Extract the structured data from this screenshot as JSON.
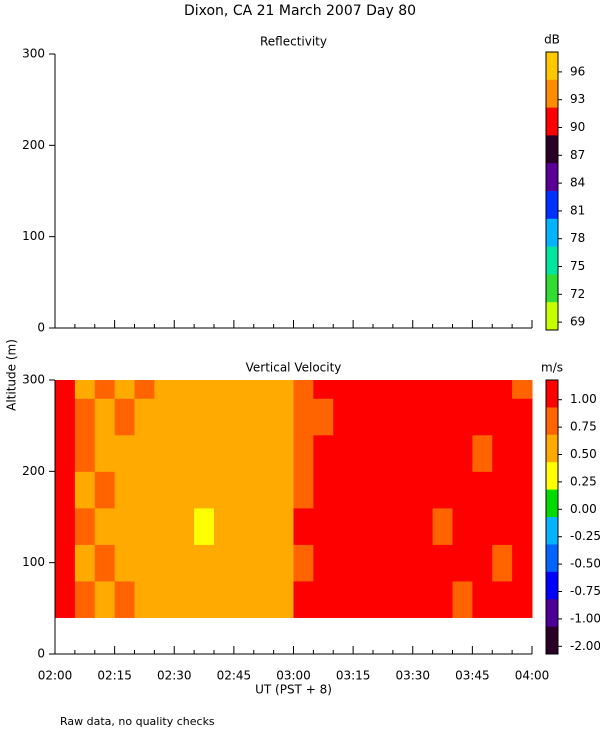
{
  "title": "Dixon, CA 21 March 2007  Day  80",
  "y_label": "Altitude (m)",
  "footnote": "Raw data, no quality checks",
  "chart_data": [
    {
      "type": "heatmap",
      "title": "Reflectivity",
      "ylim": [
        0,
        300
      ],
      "yticks": [
        0,
        100,
        200,
        300
      ],
      "y_edges": [],
      "values": [],
      "colorbar": {
        "unit": "dB",
        "ticks": [
          96,
          93,
          90,
          87,
          84,
          81,
          78,
          75,
          72,
          69
        ],
        "colors": [
          "#ffc800",
          "#ff8c00",
          "#ff0000",
          "#2a0028",
          "#5a0096",
          "#0032ff",
          "#00b4ff",
          "#00e6a0",
          "#32dc32",
          "#c8ff00"
        ]
      }
    },
    {
      "type": "heatmap",
      "title": "Vertical Velocity",
      "x_label": "UT  (PST + 8)",
      "categories": [
        "02:00",
        "02:15",
        "02:30",
        "02:45",
        "03:00",
        "03:15",
        "03:30",
        "03:45",
        "04:00"
      ],
      "ylim": [
        0,
        300
      ],
      "yticks": [
        0,
        100,
        200,
        300
      ],
      "y_edges": [
        40,
        80,
        120,
        160,
        200,
        240,
        280,
        300
      ],
      "values": [
        [
          1.1,
          0.8,
          0.7,
          0.8,
          0.6,
          0.7,
          0.6,
          0.5,
          0.6,
          0.7,
          0.6,
          0.5,
          1.0,
          1.1,
          1.1,
          1.0,
          1.1,
          1.1,
          1.0,
          1.1,
          0.9,
          1.1,
          1.1,
          1.0
        ],
        [
          1.1,
          0.7,
          0.8,
          0.7,
          0.7,
          0.6,
          0.5,
          0.6,
          0.5,
          0.6,
          0.7,
          0.6,
          0.9,
          1.1,
          1.0,
          1.1,
          1.1,
          1.0,
          1.1,
          1.1,
          1.1,
          1.0,
          0.9,
          1.1
        ],
        [
          1.1,
          0.8,
          0.7,
          0.6,
          0.6,
          0.5,
          0.6,
          0.4,
          0.5,
          0.6,
          0.6,
          0.7,
          1.0,
          1.1,
          1.1,
          1.1,
          1.0,
          1.1,
          1.1,
          0.9,
          1.1,
          1.1,
          1.0,
          1.1
        ],
        [
          1.1,
          0.7,
          0.8,
          0.7,
          0.6,
          0.6,
          0.5,
          0.5,
          0.6,
          0.5,
          0.7,
          0.6,
          0.9,
          1.0,
          1.1,
          1.1,
          1.1,
          1.1,
          1.0,
          1.1,
          1.1,
          1.1,
          1.1,
          1.0
        ],
        [
          1.1,
          0.8,
          0.6,
          0.7,
          0.7,
          0.6,
          0.6,
          0.6,
          0.5,
          0.5,
          0.6,
          0.7,
          0.8,
          1.0,
          1.1,
          1.0,
          1.1,
          1.1,
          1.1,
          1.1,
          1.0,
          0.9,
          1.1,
          1.1
        ],
        [
          1.1,
          0.8,
          0.7,
          0.8,
          0.7,
          0.7,
          0.6,
          0.6,
          0.6,
          0.5,
          0.6,
          0.6,
          0.8,
          0.9,
          1.1,
          1.1,
          1.0,
          1.1,
          1.1,
          1.0,
          1.1,
          1.1,
          1.0,
          1.1
        ],
        [
          1.1,
          0.7,
          0.8,
          0.7,
          0.8,
          0.7,
          0.6,
          0.6,
          0.6,
          0.6,
          0.7,
          0.6,
          0.9,
          1.0,
          1.1,
          1.1,
          1.1,
          1.0,
          1.1,
          1.1,
          1.1,
          1.0,
          1.1,
          0.9
        ]
      ],
      "colorbar": {
        "unit": "m/s",
        "ticks": [
          {
            "value": 1,
            "label": "1.00"
          },
          {
            "value": 0.75,
            "label": "0.75"
          },
          {
            "value": 0.5,
            "label": "0.50"
          },
          {
            "value": 0.25,
            "label": "0.25"
          },
          {
            "value": 0,
            "label": "0.00"
          },
          {
            "value": -0.25,
            "label": "-0.25"
          },
          {
            "value": -0.5,
            "label": "-0.50"
          },
          {
            "value": -0.75,
            "label": "-0.75"
          },
          {
            "value": -1,
            "label": "-1.00"
          },
          {
            "value": -2,
            "label": "-2.00"
          }
        ],
        "colors": [
          "#ff0000",
          "#ff6400",
          "#ffaa00",
          "#ffff00",
          "#00dc00",
          "#00b4ff",
          "#0064ff",
          "#0000ff",
          "#4b0096",
          "#2a0028"
        ]
      }
    }
  ]
}
